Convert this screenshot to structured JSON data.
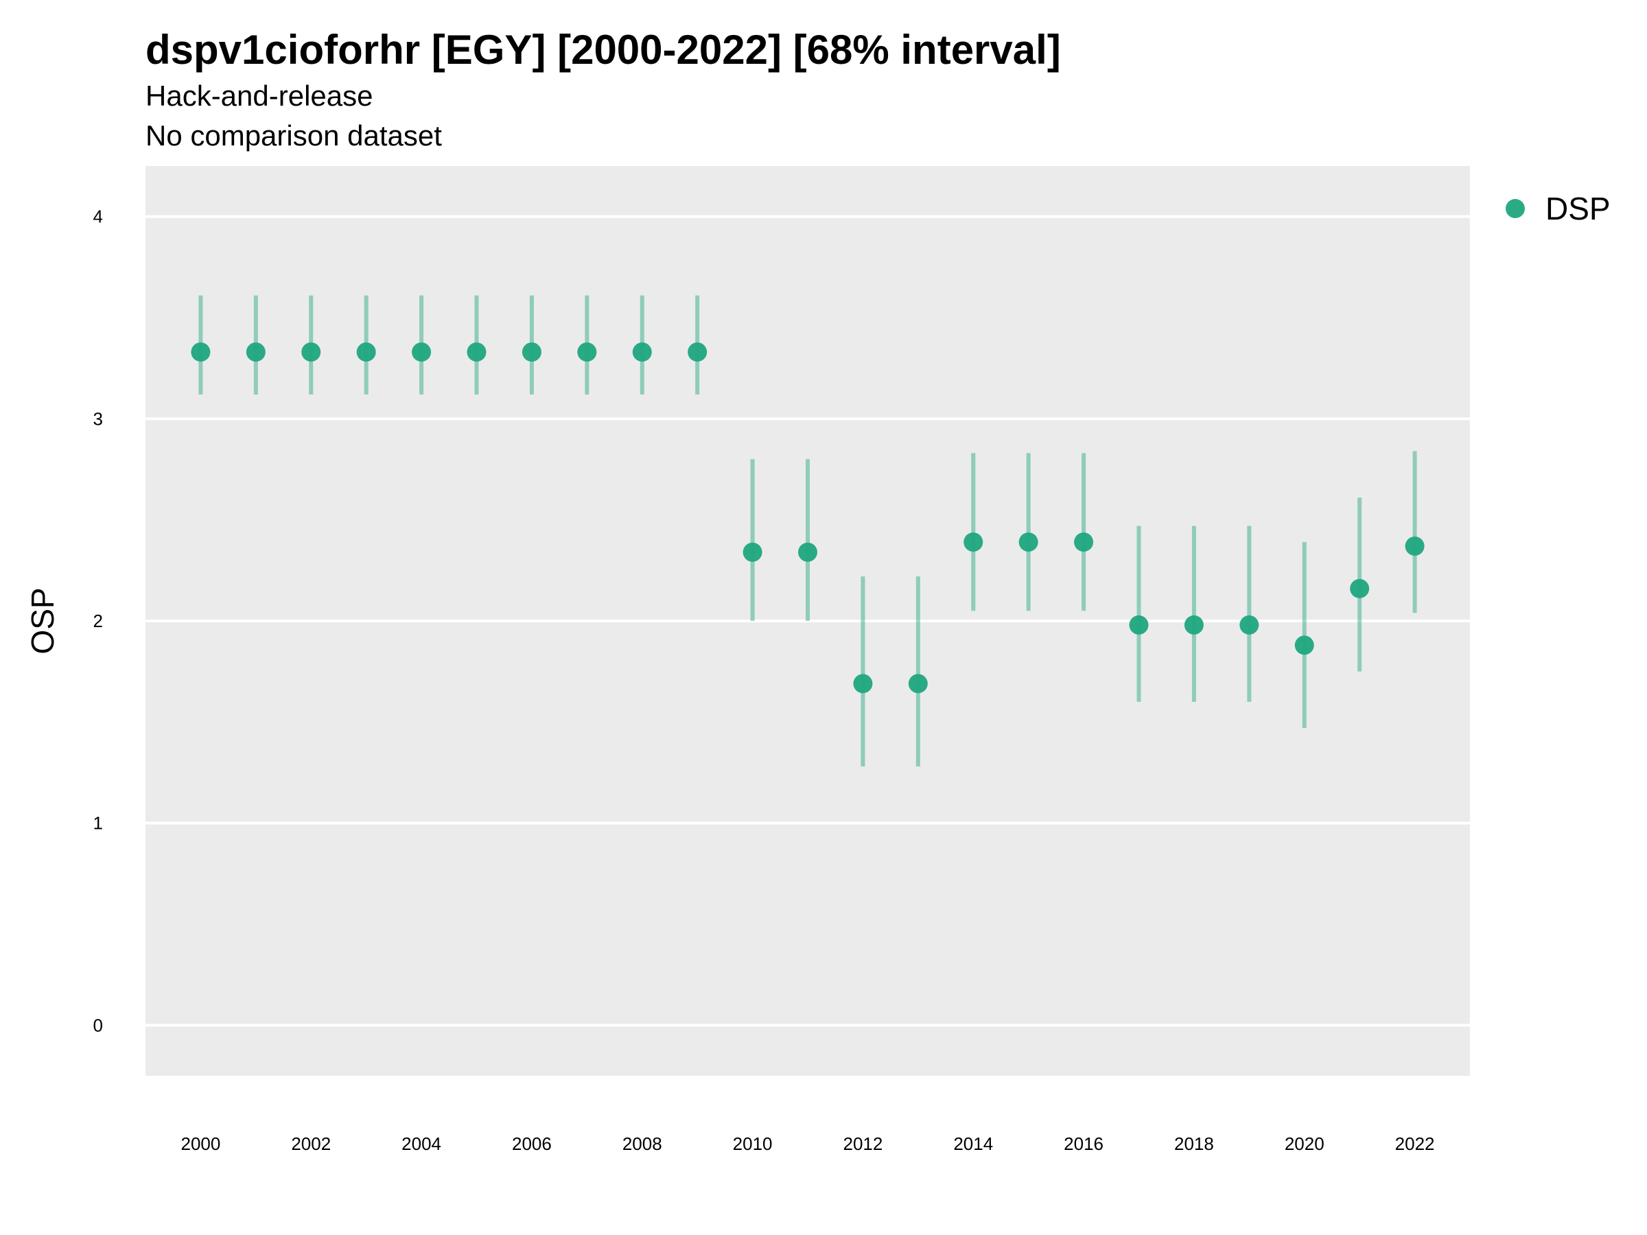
{
  "header": {
    "title": "dspv1cioforhr [EGY] [2000-2022] [68% interval]",
    "subtitle": "Hack-and-release",
    "subtitle2": "No comparison dataset"
  },
  "colors": {
    "panel": "#EBEBEB",
    "grid": "#FFFFFF",
    "series": "#1FA67F"
  },
  "chart_data": {
    "type": "scatter",
    "title": "dspv1cioforhr [EGY] [2000-2022] [68% interval]",
    "subtitle": "Hack-and-release\nNo comparison dataset",
    "xlabel": "",
    "ylabel": "OSP",
    "xlim": [
      1999.0,
      2023.0
    ],
    "ylim": [
      -0.25,
      4.25
    ],
    "x_ticks": [
      2000,
      2002,
      2004,
      2006,
      2008,
      2010,
      2012,
      2014,
      2016,
      2018,
      2020,
      2022
    ],
    "y_ticks": [
      0,
      1,
      2,
      3,
      4
    ],
    "grid": true,
    "legend": "right",
    "series": [
      {
        "name": "DSP",
        "x": [
          2000,
          2001,
          2002,
          2003,
          2004,
          2005,
          2006,
          2007,
          2008,
          2009,
          2010,
          2011,
          2012,
          2013,
          2014,
          2015,
          2016,
          2017,
          2018,
          2019,
          2020,
          2021,
          2022
        ],
        "y": [
          3.33,
          3.33,
          3.33,
          3.33,
          3.33,
          3.33,
          3.33,
          3.33,
          3.33,
          3.33,
          2.34,
          2.34,
          1.69,
          1.69,
          2.39,
          2.39,
          2.39,
          1.98,
          1.98,
          1.98,
          1.88,
          2.16,
          2.37
        ],
        "lower": [
          3.12,
          3.12,
          3.12,
          3.12,
          3.12,
          3.12,
          3.12,
          3.12,
          3.12,
          3.12,
          2.0,
          2.0,
          1.28,
          1.28,
          2.05,
          2.05,
          2.05,
          1.6,
          1.6,
          1.6,
          1.47,
          1.75,
          2.04
        ],
        "upper": [
          3.61,
          3.61,
          3.61,
          3.61,
          3.61,
          3.61,
          3.61,
          3.61,
          3.61,
          3.61,
          2.8,
          2.8,
          2.22,
          2.22,
          2.83,
          2.83,
          2.83,
          2.47,
          2.47,
          2.47,
          2.39,
          2.61,
          2.84
        ]
      }
    ]
  }
}
